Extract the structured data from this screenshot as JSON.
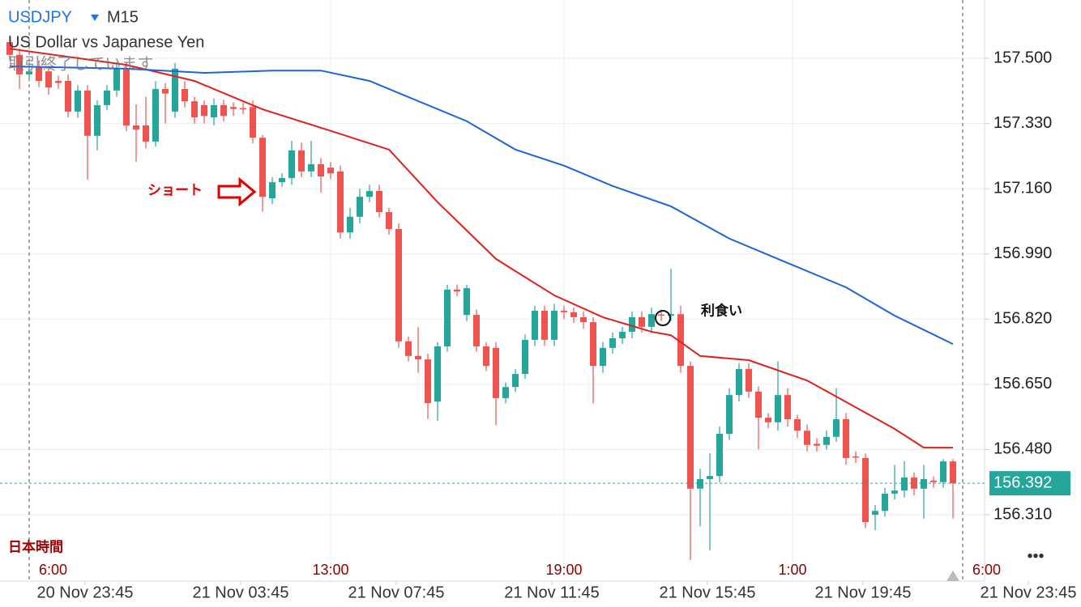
{
  "chart_data": {
    "type": "candlestick",
    "title": "USDJPY",
    "timeframe": "M15",
    "subtitle": "US Dollar vs Japanese Yen",
    "status": "取引終了しています",
    "timezone_label": "日本時間",
    "annotations": [
      "ショート",
      "利食い"
    ],
    "menu": "•••",
    "up_color": "#26a69a",
    "down_color": "#ef5350",
    "candles": {
      "open": [
        157.542,
        157.509,
        157.458,
        157.479,
        157.466,
        157.441,
        157.441,
        157.361,
        157.416,
        157.298,
        157.378,
        157.416,
        157.473,
        157.325,
        157.325,
        157.283,
        157.42,
        157.361,
        157.42,
        157.388,
        157.378,
        157.346,
        157.378,
        157.373,
        157.37,
        157.373,
        157.293,
        157.135,
        157.177,
        157.188,
        157.26,
        157.205,
        157.224,
        157.215,
        157.205,
        157.046,
        157.087,
        157.139,
        157.154,
        157.099,
        157.055,
        156.762,
        156.724,
        156.715,
        156.605,
        156.749,
        156.897,
        156.831,
        156.831,
        156.749,
        156.745,
        156.614,
        156.643,
        156.677,
        156.766,
        156.842,
        156.766,
        156.842,
        156.838,
        156.825,
        156.812,
        156.698,
        156.745,
        156.77,
        156.787,
        156.825,
        156.8,
        156.832,
        156.829,
        156.833,
        156.698,
        156.378,
        156.403,
        156.411,
        156.521,
        156.622,
        156.69,
        156.631,
        156.563,
        156.551,
        156.622,
        156.559,
        156.529,
        156.495,
        156.492,
        156.513,
        156.559,
        156.462,
        156.458,
        156.31,
        156.32,
        156.365,
        156.373,
        156.407,
        156.378,
        156.399,
        156.395,
        156.449
      ],
      "high": [
        157.56,
        157.525,
        157.49,
        157.495,
        157.48,
        157.455,
        157.458,
        157.43,
        157.43,
        157.39,
        157.43,
        157.49,
        157.49,
        157.38,
        157.4,
        157.44,
        157.435,
        157.488,
        157.44,
        157.4,
        157.39,
        157.395,
        157.392,
        157.385,
        157.385,
        157.39,
        157.3,
        157.19,
        157.2,
        157.285,
        157.28,
        157.285,
        157.24,
        157.23,
        157.22,
        157.11,
        157.16,
        157.17,
        157.17,
        157.11,
        157.07,
        156.775,
        156.8,
        156.73,
        156.76,
        156.91,
        156.91,
        156.91,
        156.845,
        156.76,
        156.76,
        156.655,
        156.69,
        156.78,
        156.855,
        156.855,
        156.86,
        156.855,
        156.85,
        156.84,
        156.825,
        156.76,
        156.785,
        156.8,
        156.84,
        156.84,
        156.85,
        156.845,
        156.951,
        156.855,
        156.71,
        156.43,
        156.47,
        156.54,
        156.64,
        156.705,
        156.705,
        156.645,
        156.575,
        156.71,
        156.64,
        156.57,
        156.545,
        156.51,
        156.53,
        156.64,
        156.575,
        156.475,
        156.47,
        156.335,
        156.38,
        156.44,
        156.45,
        156.42,
        156.44,
        156.41,
        156.455,
        156.455
      ],
      "low": [
        157.494,
        157.42,
        157.44,
        157.425,
        157.405,
        157.42,
        157.346,
        157.345,
        157.184,
        157.26,
        157.365,
        157.4,
        157.31,
        157.23,
        157.265,
        157.27,
        157.33,
        157.345,
        157.372,
        157.33,
        157.33,
        157.325,
        157.335,
        157.35,
        157.355,
        157.278,
        157.1,
        157.12,
        157.165,
        157.17,
        157.19,
        157.19,
        157.15,
        157.185,
        157.03,
        157.03,
        157.07,
        157.125,
        157.085,
        157.04,
        156.745,
        156.71,
        156.68,
        156.56,
        156.555,
        156.735,
        156.88,
        156.815,
        156.735,
        156.685,
        156.544,
        156.6,
        156.63,
        156.665,
        156.75,
        156.75,
        156.75,
        156.82,
        156.81,
        156.795,
        156.6,
        156.68,
        156.73,
        156.755,
        156.77,
        156.785,
        156.785,
        156.815,
        156.815,
        156.68,
        156.192,
        156.28,
        156.217,
        156.395,
        156.505,
        156.605,
        156.615,
        156.48,
        156.535,
        156.53,
        156.54,
        156.51,
        156.475,
        156.475,
        156.48,
        156.5,
        156.44,
        156.445,
        156.275,
        156.27,
        156.305,
        156.35,
        156.355,
        156.36,
        156.3,
        156.38,
        156.38,
        156.3
      ],
      "close": [
        157.509,
        157.458,
        157.466,
        157.441,
        157.424,
        157.436,
        157.361,
        157.416,
        157.298,
        157.378,
        157.416,
        157.473,
        157.325,
        157.314,
        157.283,
        157.42,
        157.408,
        157.473,
        157.388,
        157.346,
        157.35,
        157.378,
        157.35,
        157.368,
        157.368,
        157.293,
        157.139,
        157.177,
        157.188,
        157.26,
        157.205,
        157.224,
        157.192,
        157.2,
        157.046,
        157.087,
        157.139,
        157.154,
        157.099,
        157.055,
        156.762,
        156.724,
        156.715,
        156.601,
        156.749,
        156.897,
        156.892,
        156.901,
        156.749,
        156.698,
        156.614,
        156.643,
        156.677,
        156.766,
        156.842,
        156.766,
        156.842,
        156.838,
        156.825,
        156.812,
        156.698,
        156.745,
        156.77,
        156.787,
        156.825,
        156.8,
        156.833,
        156.829,
        156.833,
        156.698,
        156.378,
        156.403,
        156.411,
        156.521,
        156.622,
        156.69,
        156.631,
        156.563,
        156.551,
        156.622,
        156.559,
        156.529,
        156.492,
        156.49,
        156.513,
        156.559,
        156.458,
        156.46,
        156.291,
        156.32,
        156.365,
        156.373,
        156.407,
        156.378,
        156.403,
        156.395,
        156.449,
        156.392
      ]
    },
    "series": [
      {
        "color": "#e0201b",
        "x": [
          0,
          12,
          19,
          26,
          32,
          39,
          44,
          50,
          56,
          61,
          66,
          68,
          71,
          76,
          82,
          85,
          91,
          94,
          97
        ],
        "values": [
          157.525,
          157.483,
          157.441,
          157.367,
          157.319,
          157.262,
          157.125,
          156.977,
          156.882,
          156.825,
          156.787,
          156.778,
          156.724,
          156.713,
          156.66,
          156.618,
          156.534,
          156.485,
          156.485
        ]
      },
      {
        "color": "#1e64d8",
        "x": [
          0,
          12,
          20,
          27,
          32,
          37,
          41,
          47,
          52,
          57,
          62,
          68,
          74,
          79,
          86,
          91,
          97
        ],
        "values": [
          157.479,
          157.473,
          157.462,
          157.468,
          157.468,
          157.441,
          157.399,
          157.336,
          157.262,
          157.22,
          157.167,
          157.114,
          157.03,
          156.977,
          156.903,
          156.829,
          156.755
        ]
      }
    ],
    "last_price": 156.392,
    "last_price_color": "#26a69a",
    "xlim": [
      -1,
      100.25
    ],
    "ylim": [
      156.137,
      157.652
    ],
    "yticks": [
      {
        "value": 157.5,
        "label": "157.500"
      },
      {
        "value": 157.33,
        "label": "157.330"
      },
      {
        "value": 157.16,
        "label": "157.160"
      },
      {
        "value": 156.99,
        "label": "156.990"
      },
      {
        "value": 156.82,
        "label": "156.820"
      },
      {
        "value": 156.65,
        "label": "156.650"
      },
      {
        "value": 156.48,
        "label": "156.480"
      },
      {
        "value": 156.31,
        "label": "156.310"
      }
    ],
    "xticks": [
      {
        "value": 7.75,
        "label": "20 Nov 23:45"
      },
      {
        "value": 23.75,
        "label": "21 Nov 03:45"
      },
      {
        "value": 39.75,
        "label": "21 Nov 07:45"
      },
      {
        "value": 55.75,
        "label": "21 Nov 11:45"
      },
      {
        "value": 71.75,
        "label": "21 Nov 15:45"
      },
      {
        "value": 87.75,
        "label": "21 Nov 19:45"
      },
      {
        "value": 104.75,
        "label": "21 Nov 23:45"
      }
    ],
    "session_ticks": [
      {
        "value": 2,
        "label": "6:00"
      },
      {
        "value": 33,
        "label": "13:00"
      },
      {
        "value": 57,
        "label": "19:00"
      },
      {
        "value": 80.5,
        "label": "1:00"
      },
      {
        "value": 98,
        "label": "6:00"
      }
    ],
    "grid": true
  }
}
